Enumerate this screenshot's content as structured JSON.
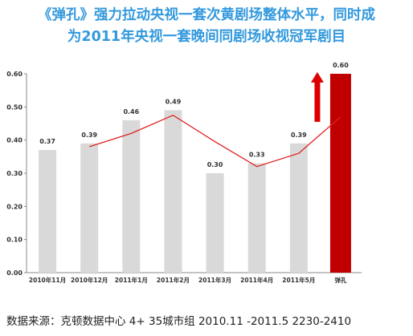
{
  "title_lines": [
    "《弹孔》强力拉动央视一套次黄剧场整体水平，同时成",
    "为2011年央视一套晚间同剧场收视冠军剧目"
  ],
  "source_note": "数据来源：克顿数据中心 4+ 35城市组 2010.11 -2011.5 2230-2410",
  "colors": {
    "title": "#3399dd",
    "bar_default": "#d9d9d9",
    "bar_highlight": "#c00000",
    "trend_line": "#e02020",
    "arrow": "#dd0000"
  },
  "chart_data": {
    "type": "bar",
    "categories": [
      "2010年11月",
      "2010年12月",
      "2011年1月",
      "2011年2月",
      "2011年3月",
      "2011年4月",
      "2011年5月",
      "弹孔"
    ],
    "values": [
      0.37,
      0.39,
      0.46,
      0.49,
      0.3,
      0.33,
      0.39,
      0.6
    ],
    "value_labels": [
      "0.37",
      "0.39",
      "0.46",
      "0.49",
      "0.30",
      "0.33",
      "0.39",
      "0.60"
    ],
    "highlight_index": 7,
    "trend_line": {
      "type": "line",
      "x": [
        "2010年12月",
        "2011年1月",
        "2011年2月",
        "2011年3月",
        "2011年4月",
        "2011年5月",
        "弹孔"
      ],
      "values": [
        0.38,
        0.42,
        0.475,
        0.395,
        0.32,
        0.36,
        0.47
      ]
    },
    "ylim": [
      0,
      0.6
    ],
    "yticks": [
      "0.00",
      "0.10",
      "0.20",
      "0.30",
      "0.40",
      "0.50",
      "0.60"
    ],
    "ytick_values": [
      0,
      0.1,
      0.2,
      0.3,
      0.4,
      0.5,
      0.6
    ],
    "grid": false,
    "legend": "none",
    "annotation": "up-arrow"
  }
}
